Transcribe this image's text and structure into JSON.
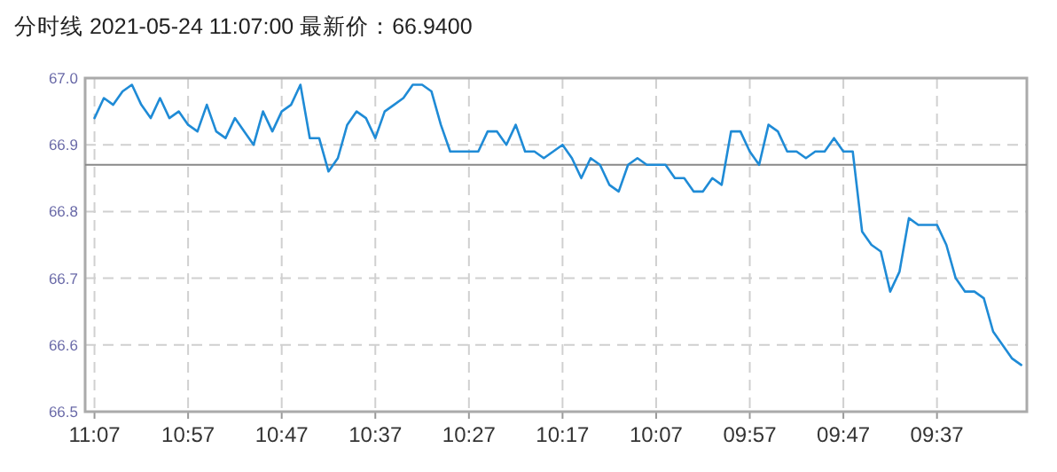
{
  "chart_data": {
    "type": "line",
    "title": "分时线  2021-05-24 11:07:00  最新价：66.9400",
    "categories": [
      "11:07",
      null,
      null,
      null,
      null,
      null,
      null,
      null,
      null,
      null,
      "10:57",
      null,
      null,
      null,
      null,
      null,
      null,
      null,
      null,
      null,
      "10:47",
      null,
      null,
      null,
      null,
      null,
      null,
      null,
      null,
      null,
      "10:37",
      null,
      null,
      null,
      null,
      null,
      null,
      null,
      null,
      null,
      "10:27",
      null,
      null,
      null,
      null,
      null,
      null,
      null,
      null,
      null,
      "10:17",
      null,
      null,
      null,
      null,
      null,
      null,
      null,
      null,
      null,
      "10:07",
      null,
      null,
      null,
      null,
      null,
      null,
      null,
      null,
      null,
      "09:57",
      null,
      null,
      null,
      null,
      null,
      null,
      null,
      null,
      null,
      "09:47",
      null,
      null,
      null,
      null,
      null,
      null,
      null,
      null,
      null,
      "09:37",
      null,
      null,
      null,
      null,
      null,
      null,
      null,
      null,
      null
    ],
    "series": [
      {
        "color": "#1f8bd6",
        "values": [
          66.94,
          66.97,
          66.96,
          66.98,
          66.99,
          66.96,
          66.94,
          66.97,
          66.94,
          66.95,
          66.93,
          66.92,
          66.96,
          66.92,
          66.91,
          66.94,
          66.92,
          66.9,
          66.95,
          66.92,
          66.95,
          66.96,
          66.99,
          66.91,
          66.91,
          66.86,
          66.88,
          66.93,
          66.95,
          66.94,
          66.91,
          66.95,
          66.96,
          66.97,
          66.99,
          66.99,
          66.98,
          66.93,
          66.89,
          66.89,
          66.89,
          66.89,
          66.92,
          66.92,
          66.9,
          66.93,
          66.89,
          66.89,
          66.88,
          66.89,
          66.9,
          66.88,
          66.85,
          66.88,
          66.87,
          66.84,
          66.83,
          66.87,
          66.88,
          66.87,
          66.87,
          66.87,
          66.85,
          66.85,
          66.83,
          66.83,
          66.85,
          66.84,
          66.92,
          66.92,
          66.89,
          66.87,
          66.93,
          66.92,
          66.89,
          66.89,
          66.88,
          66.89,
          66.89,
          66.91,
          66.89,
          66.89,
          66.77,
          66.75,
          66.74,
          66.68,
          66.71,
          66.79,
          66.78,
          66.78,
          66.78,
          66.75,
          66.7,
          66.68,
          66.68,
          66.67,
          66.62,
          66.6,
          66.58,
          66.57
        ]
      }
    ],
    "ylim": [
      66.5,
      67.0
    ],
    "yticks": [
      {
        "value": 66.5,
        "label": "66.5"
      },
      {
        "value": 66.6,
        "label": "66.6"
      },
      {
        "value": 66.7,
        "label": "66.7"
      },
      {
        "value": 66.8,
        "label": "66.8"
      },
      {
        "value": 66.9,
        "label": "66.9"
      },
      {
        "value": 67.0,
        "label": "67.0"
      }
    ],
    "ref_lines": [
      {
        "axis": "y",
        "value": 66.87,
        "color": "#888888"
      }
    ],
    "grid": true,
    "line_style": "solid"
  }
}
